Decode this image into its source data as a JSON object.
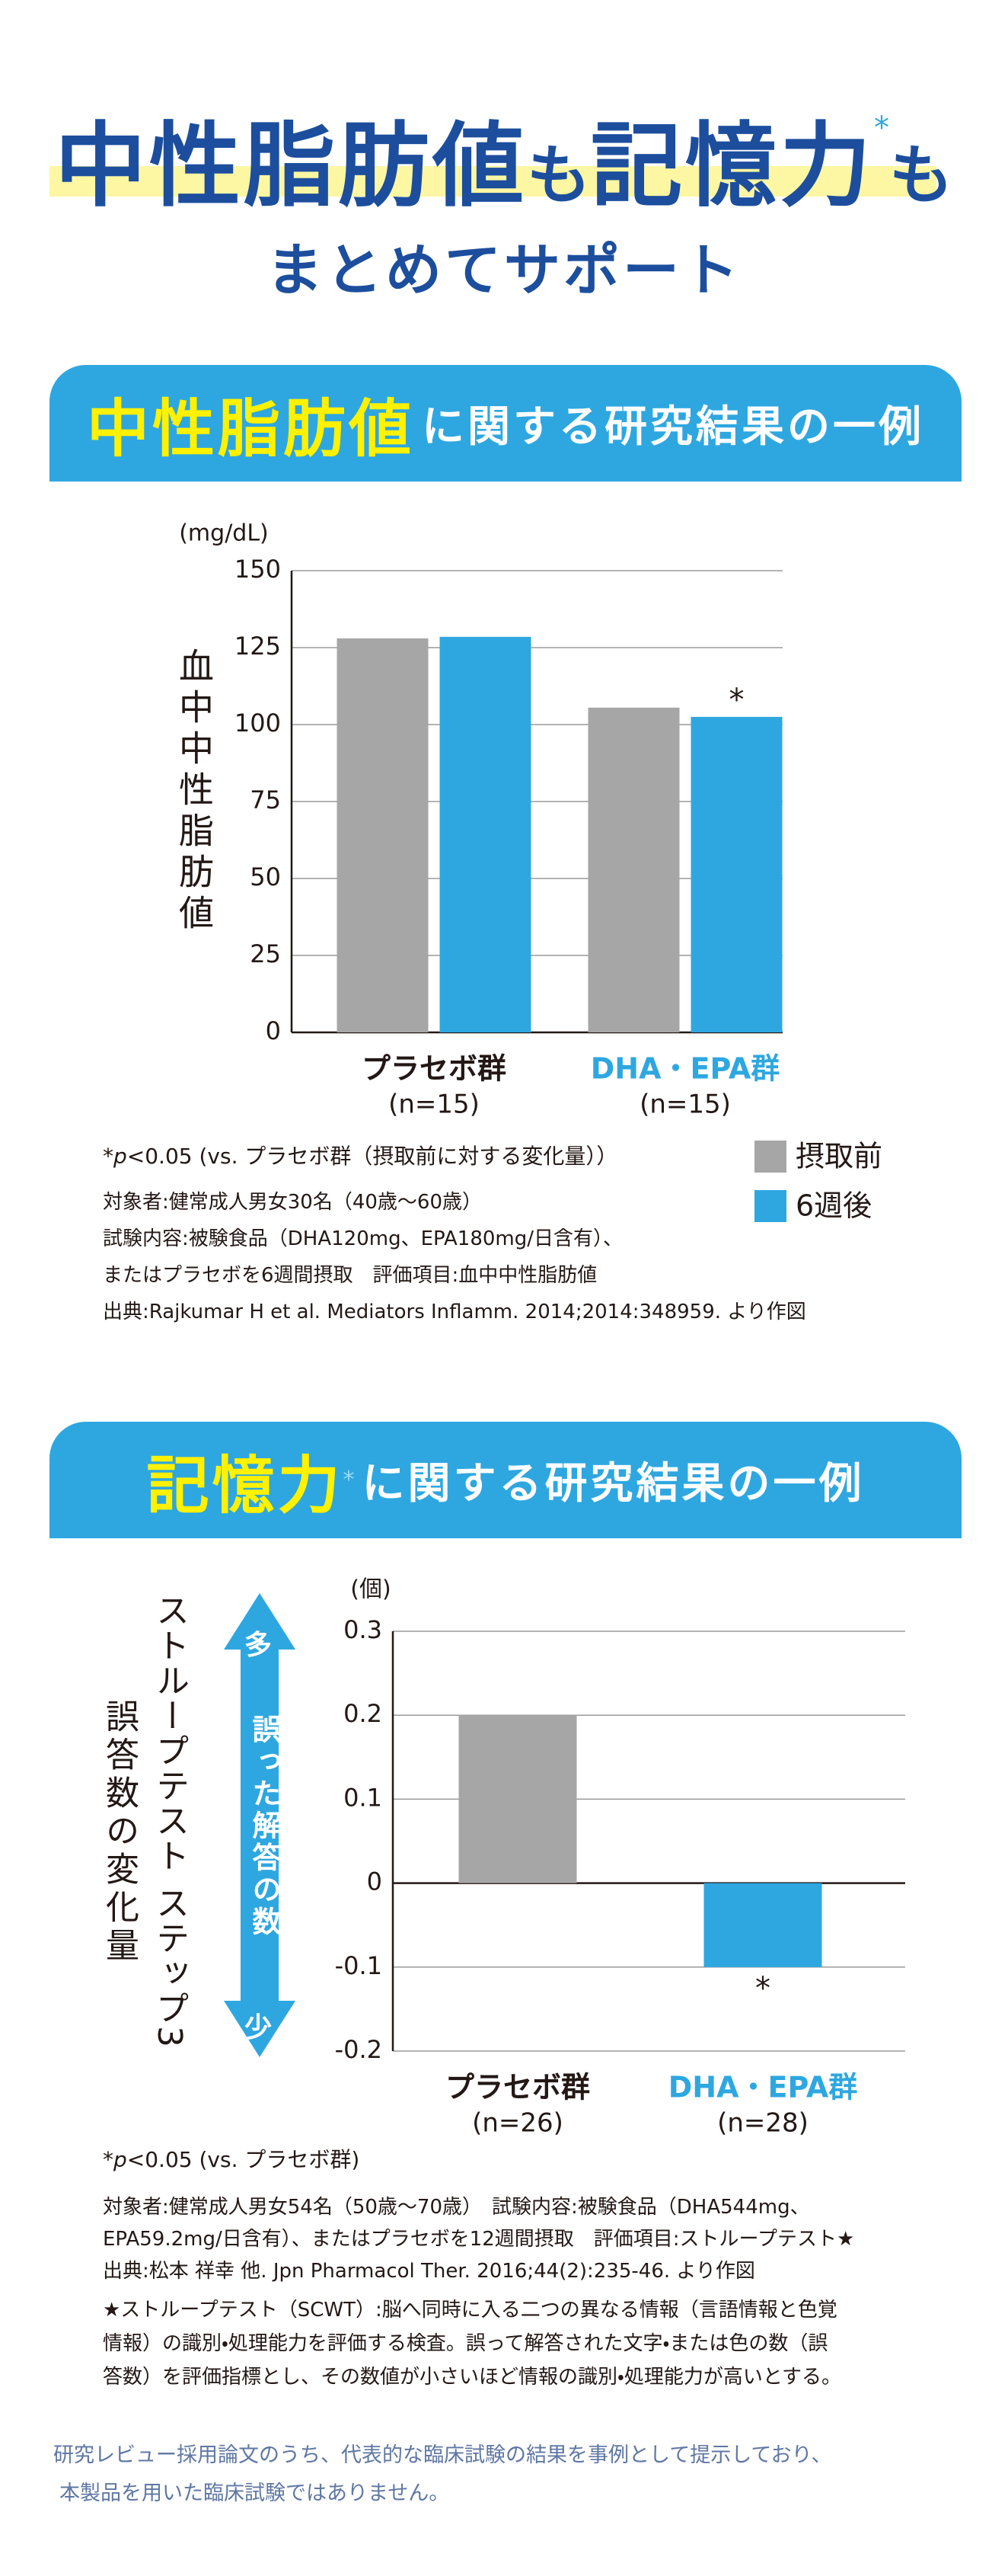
{
  "header": {
    "title_part1": "中性脂肪値",
    "title_part2": "も",
    "title_part3": "記憶力",
    "title_mark": "*",
    "title_part4": "も",
    "subtitle": "まとめてサポート"
  },
  "sections": [
    {
      "banner_highlight": "中性脂肪値",
      "banner_rest": "に関する研究結果の一例",
      "p_note": {
        "star": "*",
        "p": "p",
        "rest": "<0.05 (vs. プラセボ群（摂取前に対する変化量））"
      },
      "notes": [
        "対象者:健常成人男女30名（40歳～60歳）",
        "試験内容:被験食品（DHA120mg、EPA180mg/日含有）、",
        "またはプラセボを6週間摂取　評価項目:血中中性脂肪値",
        "出典:Rajkumar H et al. Mediators Inflamm. 2014;2014:348959. より作図"
      ]
    },
    {
      "banner_highlight": "記憶力",
      "banner_mark": "*",
      "banner_rest": "に関する研究結果の一例",
      "arrow": {
        "top": "多",
        "middle": "誤った解答の数",
        "bottom": "少"
      },
      "p_note": {
        "star": "*",
        "p": "p",
        "rest": "<0.05 (vs. プラセボ群)"
      },
      "notes": [
        "対象者:健常成人男女54名（50歳～70歳）　試験内容:被験食品（DHA544mg、",
        "EPA59.2mg/日含有）、またはプラセボを12週間摂取　評価項目:ストループテスト★",
        "出典:松本 祥幸 他. Jpn Pharmacol Ther. 2016;44(2):235-46. より作図"
      ],
      "definition": [
        "★ストループテスト（SCWT）:脳へ同時に入る二つの異なる情報（言語情報と色覚",
        "情報）の識別・処理能力を評価する検査。誤って解答された文字・または色の数（誤",
        "答数）を評価指標とし、その数値が小さいほど情報の識別・処理能力が高いとする。"
      ]
    }
  ],
  "footer": [
    "研究レビュー採用論文のうち、代表的な臨床試験の結果を事例として提示しており、",
    "本製品を用いた臨床試験ではありません。"
  ],
  "chart_data": [
    {
      "type": "bar",
      "y_label": "血中中性脂肪値",
      "y_unit": "(mg/dL)",
      "categories": [
        "プラセボ群",
        "DHA・EPA群"
      ],
      "category_sublabels": [
        "(n=15)",
        "(n=15)"
      ],
      "category_colors": [
        "#231815",
        "#2ea7e0"
      ],
      "series": [
        {
          "name": "摂取前",
          "color": "#a6a6a6",
          "values": [
            128,
            105.5
          ],
          "annotations": [
            null,
            null
          ]
        },
        {
          "name": "6週後",
          "color": "#2ea7e0",
          "values": [
            128.5,
            102.5
          ],
          "annotations": [
            null,
            "*"
          ]
        }
      ],
      "ylim": [
        0,
        150
      ],
      "yticks": [
        0,
        25,
        50,
        75,
        100,
        125,
        150
      ],
      "grid": true,
      "legend": "bottom-right"
    },
    {
      "type": "bar",
      "y_label": [
        "ストループテスト ステップ3",
        "誤答数の変化量"
      ],
      "y_unit": "(個)",
      "categories": [
        "プラセボ群",
        "DHA・EPA群"
      ],
      "category_sublabels": [
        "(n=26)",
        "(n=28)"
      ],
      "category_colors": [
        "#231815",
        "#2ea7e0"
      ],
      "values": [
        0.2,
        -0.1
      ],
      "colors": [
        "#a6a6a6",
        "#2ea7e0"
      ],
      "annotations": [
        null,
        "*"
      ],
      "ylim": [
        -0.2,
        0.3
      ],
      "yticks": [
        -0.2,
        -0.1,
        0,
        0.1,
        0.2,
        0.3
      ],
      "grid": true
    }
  ]
}
